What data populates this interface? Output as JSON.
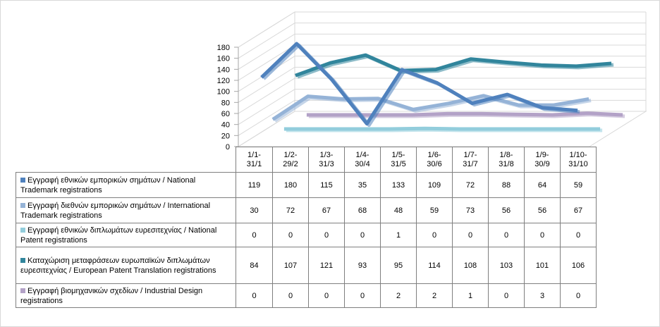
{
  "chart_data": {
    "type": "line",
    "categories": [
      "1/1-31/1",
      "1/2-29/2",
      "1/3-31/3",
      "1/4-30/4",
      "1/5-31/5",
      "1/6-30/6",
      "1/7-31/7",
      "1/8-31/8",
      "1/9-30/9",
      "1/10-31/10"
    ],
    "series": [
      {
        "name": "Εγγραφή  εθνικών εμπορικών σημάτων  / National Trademark registrations",
        "color": "#4f81bd",
        "values": [
          119,
          180,
          115,
          35,
          133,
          109,
          72,
          88,
          64,
          59
        ]
      },
      {
        "name": "Εγγραφή  διεθνών εμπορικών σημάτων  / International Trademark registrations",
        "color": "#95b3d7",
        "values": [
          30,
          72,
          67,
          68,
          48,
          59,
          73,
          56,
          56,
          67
        ]
      },
      {
        "name": "Εγγραφή  εθνικών διπλωμάτων  ευρεσιτεχνίας / National Patent registrations",
        "color": "#92cddc",
        "values": [
          0,
          0,
          0,
          0,
          1,
          0,
          0,
          0,
          0,
          0
        ]
      },
      {
        "name": "Καταχώριση μεταφράσεων  ευρωπαϊκών διπλωμάτων ευρεσιτεχνίας / European Patent Translation registrations",
        "color": "#31859c",
        "values": [
          84,
          107,
          121,
          93,
          95,
          114,
          108,
          103,
          101,
          106
        ]
      },
      {
        "name": "Εγγραφή  βιομηχανικών σχεδίων / Industrial Design registrations",
        "color": "#b3a2c7",
        "values": [
          0,
          0,
          0,
          0,
          2,
          2,
          1,
          0,
          3,
          0
        ]
      }
    ],
    "y_ticks": [
      "0",
      "20",
      "40",
      "60",
      "80",
      "100",
      "120",
      "140",
      "160",
      "180"
    ],
    "ylim": [
      0,
      180
    ],
    "grid": true,
    "legend": "data-table"
  }
}
